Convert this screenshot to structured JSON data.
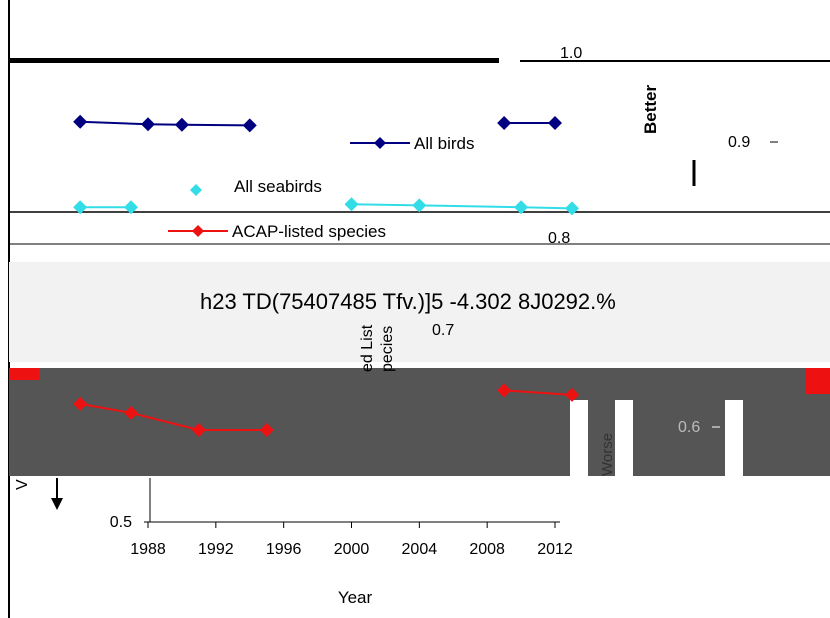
{
  "chart_data": {
    "type": "line",
    "title": "",
    "xlabel": "Year",
    "ylabel": "",
    "x_ticks": [
      "1988",
      "1992",
      "1996",
      "2000",
      "2004",
      "2008",
      "2012"
    ],
    "y_ticks": [
      "0.5",
      "0.6",
      "0.7",
      "0.8",
      "0.9",
      "1.0"
    ],
    "xlim": [
      1985,
      2013
    ],
    "ylim": [
      0.5,
      1.0
    ],
    "legend": {
      "placement": "top-center",
      "entries": [
        "All birds",
        "All seabirds",
        "ACAP-listed species"
      ]
    },
    "series": [
      {
        "name": "All birds",
        "color": "#000080",
        "x": [
          1984,
          1988,
          1990,
          1994,
          2009,
          2012
        ],
        "y": [
          0.907,
          0.903,
          0.902,
          0.901,
          0.905,
          0.905
        ]
      },
      {
        "name": "All seabirds",
        "color": "#33dde8",
        "x": [
          1984,
          1987,
          2000,
          2004,
          2010,
          2013
        ],
        "y": [
          0.818,
          0.818,
          0.823,
          0.821,
          0.818,
          0.816
        ]
      },
      {
        "name": "ACAP-listed species",
        "color": "#ee1111",
        "x": [
          1984,
          1987,
          1991,
          1995,
          2009,
          2013
        ],
        "y": [
          0.6,
          0.59,
          0.571,
          0.571,
          0.615,
          0.61
        ]
      }
    ],
    "annotations": {
      "better": "Better",
      "worse": "Worse",
      "side_label": "ed List\npecies",
      "stray_text": "h23 TD(75407485 Tfv.)]5 -4.302 8J0292.%",
      "dup_tick_09": "0.9",
      "dup_tick_07": "0.7",
      "dup_tick_06": "0.6",
      "dup_tick_08": "0.8",
      "fragment_v": "V"
    }
  }
}
